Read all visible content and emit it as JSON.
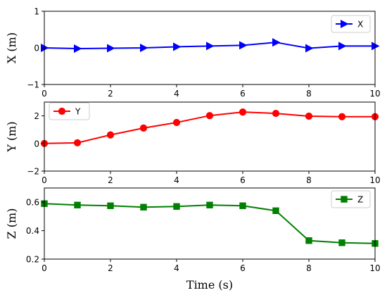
{
  "chart_data": [
    {
      "type": "line",
      "x": [
        0,
        1,
        2,
        3,
        4,
        5,
        6,
        7,
        8,
        9,
        10
      ],
      "series": [
        {
          "name": "X",
          "values": [
            0.0,
            -0.02,
            -0.01,
            0.0,
            0.03,
            0.05,
            0.07,
            0.15,
            -0.01,
            0.05,
            0.05
          ],
          "color": "#0000ff",
          "marker": "triangle-right"
        }
      ],
      "ylabel": "X (m)",
      "xlabel": "",
      "xlim": [
        0,
        10
      ],
      "ylim": [
        -1,
        1
      ],
      "xticks": [
        "0",
        "2",
        "4",
        "6",
        "8",
        "10"
      ],
      "yticks": [
        "−1",
        "0",
        "1"
      ],
      "grid": false,
      "legend": "top-right"
    },
    {
      "type": "line",
      "x": [
        0,
        1,
        2,
        3,
        4,
        5,
        6,
        7,
        8,
        9,
        10
      ],
      "series": [
        {
          "name": "Y",
          "values": [
            0.0,
            0.05,
            0.62,
            1.12,
            1.52,
            2.02,
            2.28,
            2.18,
            1.98,
            1.94,
            1.94
          ],
          "color": "#ff0000",
          "marker": "circle"
        }
      ],
      "ylabel": "Y (m)",
      "xlabel": "",
      "xlim": [
        0,
        10
      ],
      "ylim": [
        -2,
        3
      ],
      "xticks": [
        "0",
        "2",
        "4",
        "6",
        "8",
        "10"
      ],
      "yticks": [
        "−2",
        "0",
        "2"
      ],
      "grid": false,
      "legend": "top-left"
    },
    {
      "type": "line",
      "x": [
        0,
        1,
        2,
        3,
        4,
        5,
        6,
        7,
        8,
        9,
        10
      ],
      "series": [
        {
          "name": "Z",
          "values": [
            0.59,
            0.58,
            0.575,
            0.565,
            0.57,
            0.58,
            0.575,
            0.54,
            0.33,
            0.315,
            0.31
          ],
          "color": "#008000",
          "marker": "square"
        }
      ],
      "ylabel": "Z (m)",
      "xlabel": "Time (s)",
      "xlim": [
        0,
        10
      ],
      "ylim": [
        0.2,
        0.7
      ],
      "xticks": [
        "0",
        "2",
        "4",
        "6",
        "8",
        "10"
      ],
      "yticks": [
        "0.2",
        "0.4",
        "0.6"
      ],
      "grid": false,
      "legend": "top-right"
    }
  ]
}
